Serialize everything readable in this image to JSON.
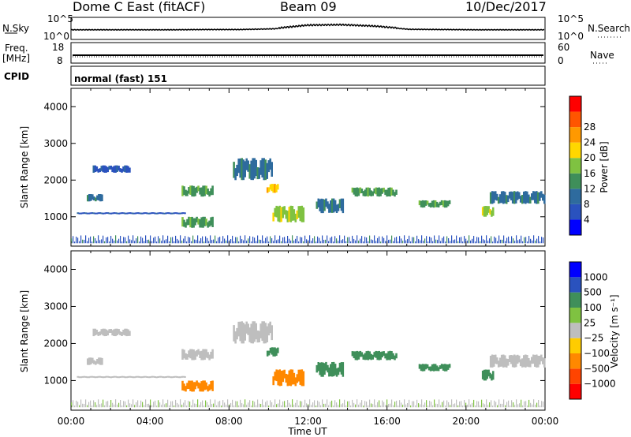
{
  "header": {
    "station": "Dome C East (fitACF)",
    "beam": "Beam 09",
    "date": "10/Dec/2017"
  },
  "side_labels": {
    "nsky": "N.Sky",
    "nsky_ticks": [
      "10^5",
      "10^0"
    ],
    "nsearch": "N.Search",
    "nsearch_ticks": [
      "10^5",
      "10^0"
    ],
    "freq": "Freq.",
    "freq_unit": "[MHz]",
    "freq_ticks": [
      "18",
      "8"
    ],
    "nave": "Nave",
    "nave_ticks": [
      "60",
      "0"
    ],
    "cpid": "CPID"
  },
  "cpid_value": "normal (fast) 151",
  "colors": {
    "power_scale": [
      "#0000ff",
      "#2a52be",
      "#2e6b9e",
      "#3f8f5a",
      "#7fc241",
      "#ffd700",
      "#ff9900",
      "#ff5500",
      "#ff0000"
    ],
    "velocity_scale": [
      "#0000ff",
      "#2a52be",
      "#3f8f5a",
      "#7fc241",
      "#c0c0c0",
      "#ffcc00",
      "#ff8800",
      "#ff4400",
      "#ff0000"
    ],
    "gray_ground_scatter": "#bebebe"
  },
  "chart_data": [
    {
      "type": "line",
      "name": "N.Sky / N.Search strip",
      "x": [
        "00:00",
        "02:00",
        "04:00",
        "06:00",
        "08:00",
        "10:00",
        "12:00",
        "13:00",
        "14:00",
        "15:00",
        "16:00",
        "18:00",
        "20:00",
        "22:00",
        "24:00"
      ],
      "values": [
        0.3,
        0.3,
        0.3,
        0.3,
        0.35,
        0.35,
        0.5,
        1.2,
        1.3,
        1.0,
        0.4,
        0.35,
        0.3,
        0.3,
        0.3
      ]
    },
    {
      "type": "line",
      "name": "Freq / Nave strip",
      "xlabel": "",
      "ylabel": "",
      "values_freq": 11,
      "values_nave": 20
    },
    {
      "type": "heatmap",
      "title": "Power",
      "ylabel": "Slant Range [km]",
      "xlabel": "Time UT",
      "x_ticks": [
        "00:00",
        "04:00",
        "08:00",
        "12:00",
        "16:00",
        "20:00",
        "00:00"
      ],
      "y_ticks": [
        "1000",
        "2000",
        "3000",
        "4000"
      ],
      "ylim": [
        200,
        4500
      ],
      "xlim": [
        0,
        24
      ],
      "colorbar_label": "Power [dB]",
      "colorbar_ticks": [
        "4",
        "8",
        "12",
        "16",
        "20",
        "24",
        "28"
      ],
      "features": [
        {
          "t": [
            0.8,
            1.6
          ],
          "r": [
            1420,
            1620
          ],
          "level": 8
        },
        {
          "t": [
            0.3,
            5.8
          ],
          "r": [
            1080,
            1110
          ],
          "level": 6
        },
        {
          "t": [
            1.1,
            3.0
          ],
          "r": [
            2200,
            2400
          ],
          "level": 6
        },
        {
          "t": [
            5.6,
            7.2
          ],
          "r": [
            1550,
            1850
          ],
          "level": 14
        },
        {
          "t": [
            5.6,
            7.2
          ],
          "r": [
            700,
            1000
          ],
          "level": 12
        },
        {
          "t": [
            8.2,
            10.2
          ],
          "r": [
            2000,
            2600
          ],
          "level": 8
        },
        {
          "t": [
            9.9,
            10.5
          ],
          "r": [
            1650,
            1900
          ],
          "level": 22
        },
        {
          "t": [
            10.2,
            11.8
          ],
          "r": [
            850,
            1300
          ],
          "level": 18
        },
        {
          "t": [
            12.4,
            13.8
          ],
          "r": [
            1100,
            1500
          ],
          "level": 10
        },
        {
          "t": [
            14.2,
            16.5
          ],
          "r": [
            1550,
            1800
          ],
          "level": 14
        },
        {
          "t": [
            17.6,
            19.2
          ],
          "r": [
            1250,
            1450
          ],
          "level": 12
        },
        {
          "t": [
            20.8,
            21.4
          ],
          "r": [
            1000,
            1300
          ],
          "level": 18
        },
        {
          "t": [
            21.2,
            24.0
          ],
          "r": [
            1350,
            1700
          ],
          "level": 8
        }
      ]
    },
    {
      "type": "heatmap",
      "title": "Velocity",
      "ylabel": "Slant Range [km]",
      "xlabel": "Time UT",
      "x_ticks": [
        "00:00",
        "04:00",
        "08:00",
        "12:00",
        "16:00",
        "20:00",
        "00:00"
      ],
      "y_ticks": [
        "1000",
        "2000",
        "3000",
        "4000"
      ],
      "ylim": [
        200,
        4500
      ],
      "xlim": [
        0,
        24
      ],
      "colorbar_label": "Velocity [m s⁻¹]",
      "colorbar_ticks": [
        "1000",
        "500",
        "100",
        "25",
        "−25",
        "−100",
        "−500",
        "−1000"
      ],
      "features": [
        {
          "t": [
            0.8,
            1.6
          ],
          "r": [
            1420,
            1620
          ],
          "vel": 0
        },
        {
          "t": [
            0.3,
            5.8
          ],
          "r": [
            1080,
            1110
          ],
          "vel": 0
        },
        {
          "t": [
            1.1,
            3.0
          ],
          "r": [
            2200,
            2400
          ],
          "vel": 0
        },
        {
          "t": [
            5.6,
            7.2
          ],
          "r": [
            1550,
            1850
          ],
          "vel": 0
        },
        {
          "t": [
            5.6,
            7.2
          ],
          "r": [
            700,
            1000
          ],
          "vel": -300
        },
        {
          "t": [
            8.2,
            10.2
          ],
          "r": [
            2000,
            2600
          ],
          "vel": 0
        },
        {
          "t": [
            9.9,
            10.5
          ],
          "r": [
            1650,
            1900
          ],
          "vel": 300
        },
        {
          "t": [
            10.2,
            11.8
          ],
          "r": [
            850,
            1300
          ],
          "vel": -200
        },
        {
          "t": [
            12.4,
            13.8
          ],
          "r": [
            1100,
            1500
          ],
          "vel": 100
        },
        {
          "t": [
            14.2,
            16.5
          ],
          "r": [
            1550,
            1800
          ],
          "vel": 200
        },
        {
          "t": [
            17.6,
            19.2
          ],
          "r": [
            1250,
            1450
          ],
          "vel": 150
        },
        {
          "t": [
            20.8,
            21.4
          ],
          "r": [
            1000,
            1300
          ],
          "vel": 200
        },
        {
          "t": [
            21.2,
            24.0
          ],
          "r": [
            1350,
            1700
          ],
          "vel": 0
        }
      ]
    }
  ]
}
